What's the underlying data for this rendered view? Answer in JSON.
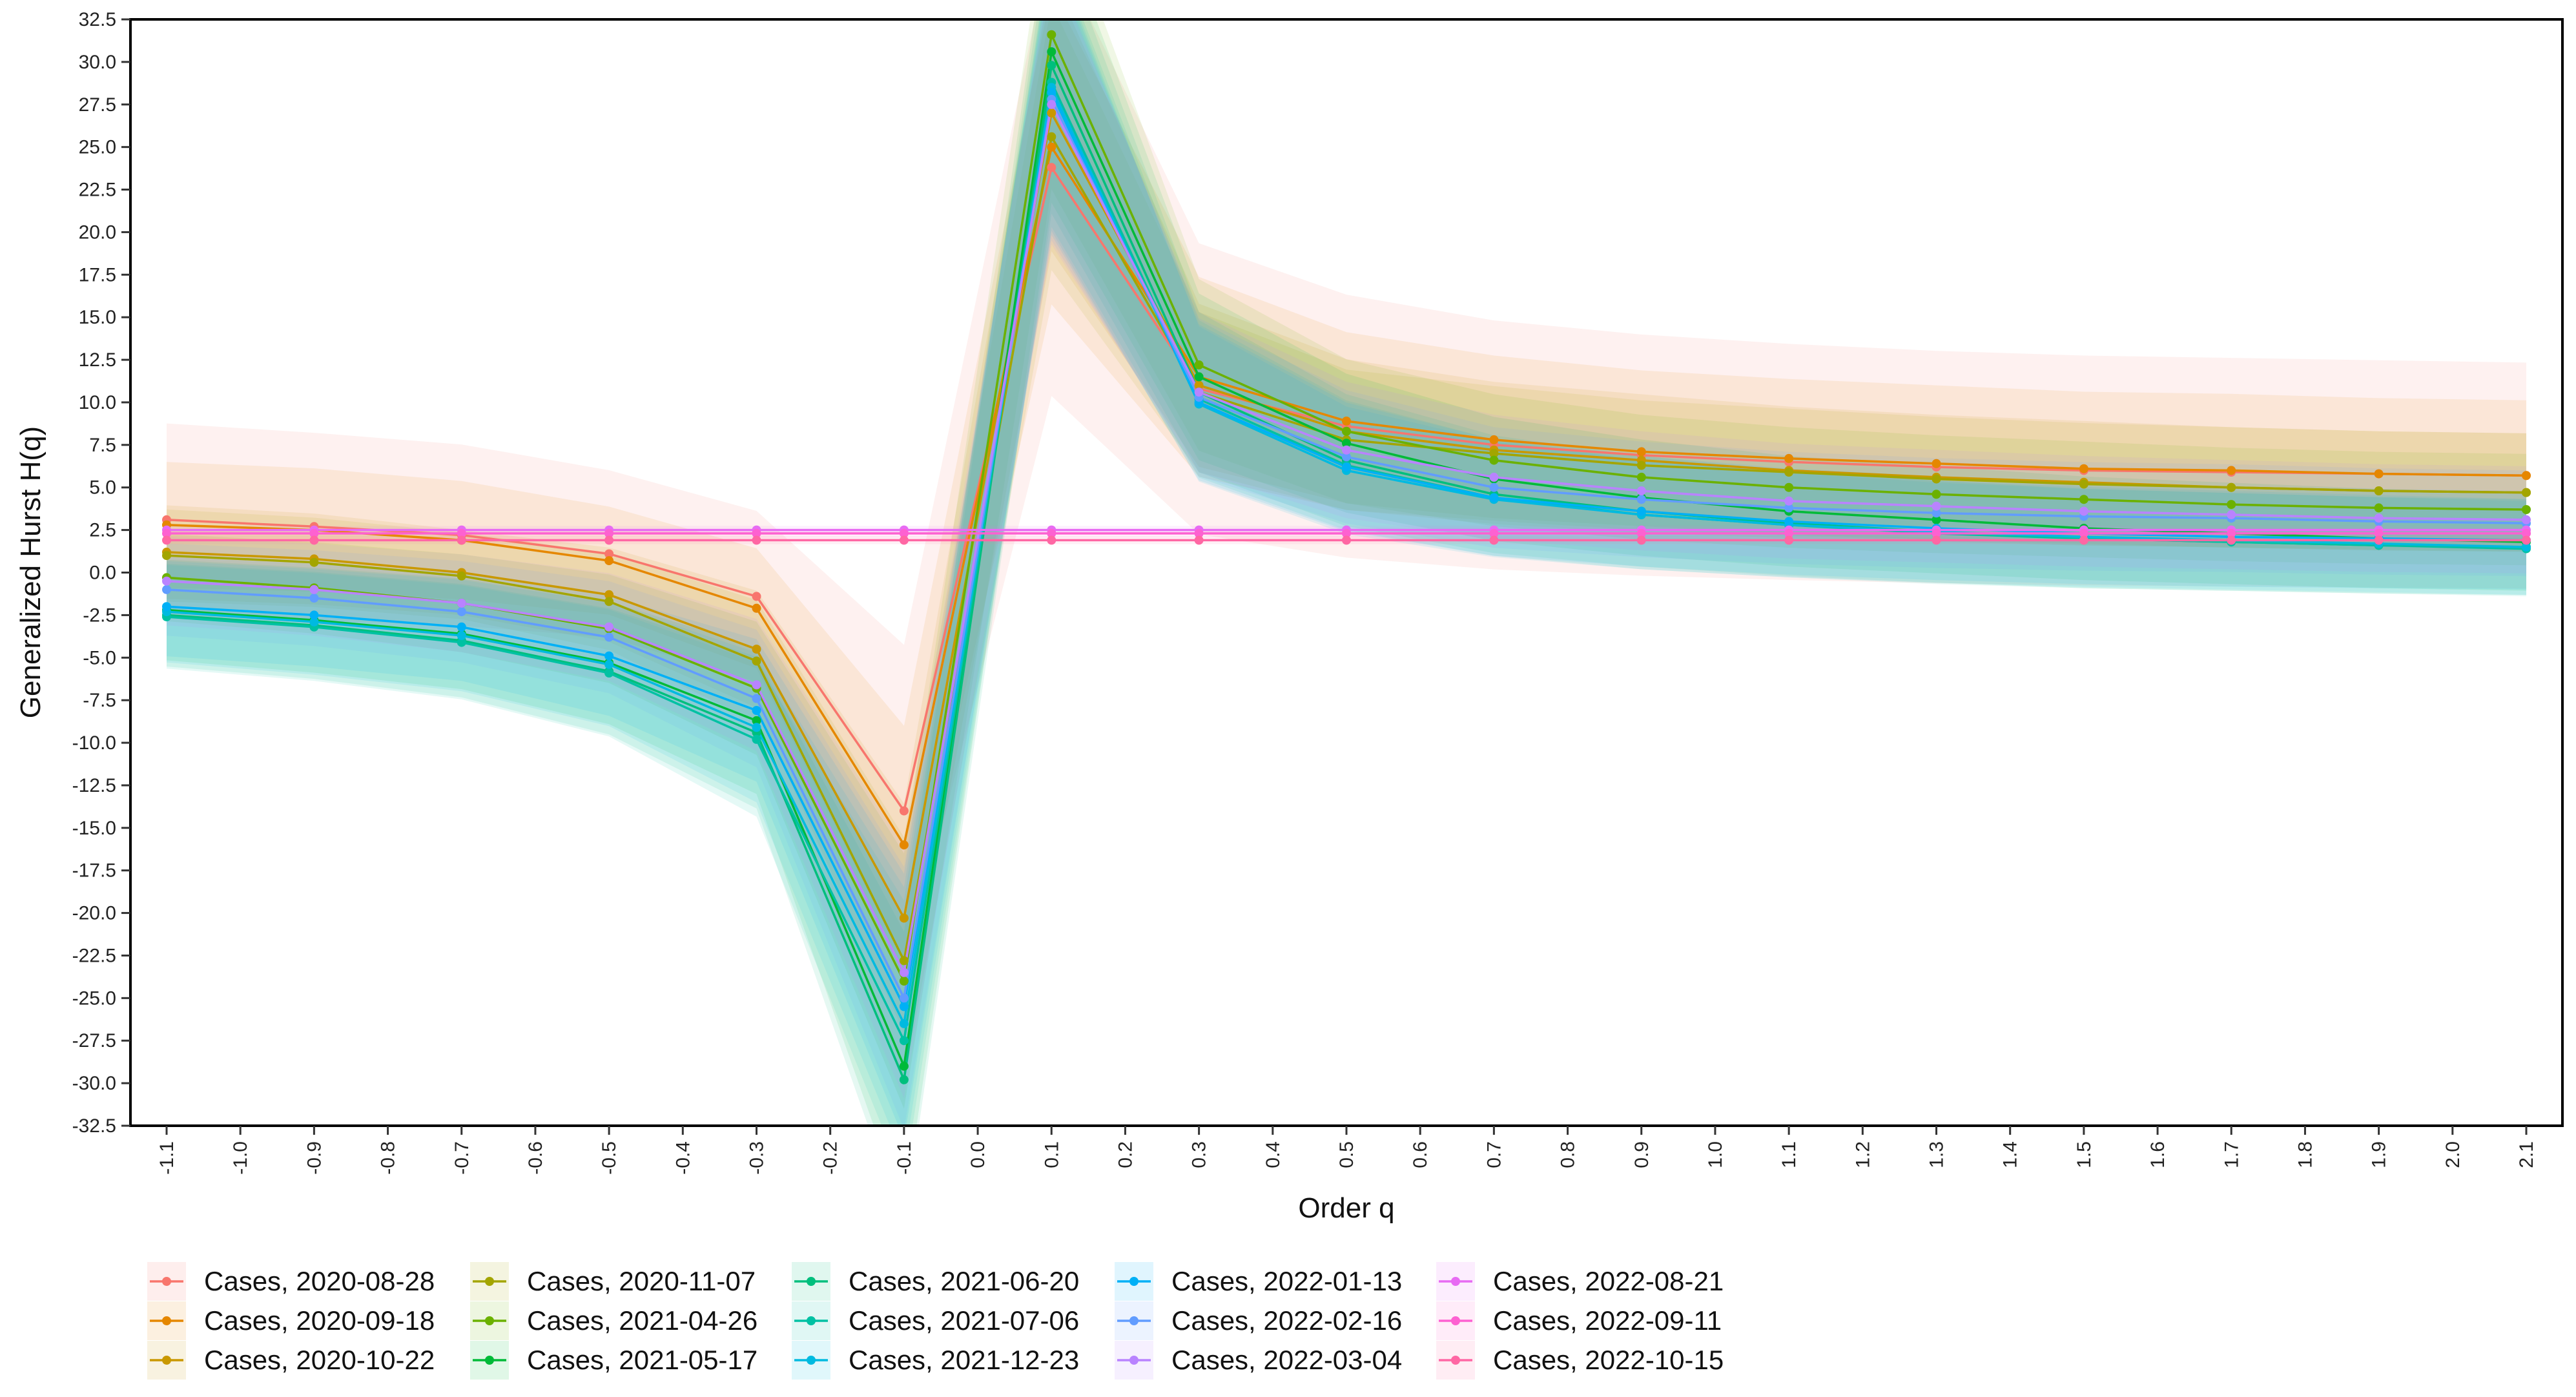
{
  "chart_data": {
    "type": "line",
    "xlabel": "Order q",
    "ylabel": "Generalized Hurst H(q)",
    "ylim": [
      -32.5,
      32.5
    ],
    "xlim": [
      -1.1,
      2.1
    ],
    "grid": false,
    "legend_position": "bottom",
    "x_ticks": [
      "-1.1",
      "-1.0",
      "-0.9",
      "-0.8",
      "-0.7",
      "-0.6",
      "-0.5",
      "-0.4",
      "-0.3",
      "-0.2",
      "-0.1",
      "0.0",
      "0.1",
      "0.2",
      "0.3",
      "0.4",
      "0.5",
      "0.6",
      "0.7",
      "0.8",
      "0.9",
      "1.0",
      "1.1",
      "1.2",
      "1.3",
      "1.4",
      "1.5",
      "1.6",
      "1.7",
      "1.8",
      "1.9",
      "2.0",
      "2.1"
    ],
    "y_ticks": [
      "-32.5",
      "-30.0",
      "-27.5",
      "-25.0",
      "-22.5",
      "-20.0",
      "-17.5",
      "-15.0",
      "-12.5",
      "-10.0",
      "-7.5",
      "-5.0",
      "-2.5",
      "0.0",
      "2.5",
      "5.0",
      "7.5",
      "10.0",
      "12.5",
      "15.0",
      "17.5",
      "20.0",
      "22.5",
      "25.0",
      "27.5",
      "30.0",
      "32.5"
    ],
    "x": [
      -1.1,
      -0.9,
      -0.7,
      -0.5,
      -0.3,
      -0.1,
      0.1,
      0.3,
      0.5,
      0.7,
      0.9,
      1.1,
      1.3,
      1.5,
      1.7,
      1.9,
      2.1
    ],
    "series": [
      {
        "name": "Cases, 2020-08-28",
        "color": "#F8766D",
        "values": [
          3.1,
          2.7,
          2.2,
          1.1,
          -1.4,
          -14.0,
          23.8,
          10.8,
          8.6,
          7.5,
          6.9,
          6.5,
          6.2,
          6.0,
          5.9,
          5.8,
          5.7
        ],
        "band": 4.5
      },
      {
        "name": "Cases, 2020-09-18",
        "color": "#E58700",
        "values": [
          2.8,
          2.5,
          1.9,
          0.7,
          -2.1,
          -16.0,
          25.0,
          11.5,
          8.9,
          7.8,
          7.1,
          6.7,
          6.4,
          6.1,
          6.0,
          5.8,
          5.7
        ],
        "band": 3.0
      },
      {
        "name": "Cases, 2020-10-22",
        "color": "#C99800",
        "values": [
          1.2,
          0.8,
          0.0,
          -1.3,
          -4.5,
          -20.3,
          27.0,
          11.0,
          8.3,
          7.2,
          6.6,
          6.0,
          5.6,
          5.3,
          5.0,
          4.8,
          4.7
        ],
        "band": 2.5
      },
      {
        "name": "Cases, 2020-11-07",
        "color": "#A3A500",
        "values": [
          1.0,
          0.6,
          -0.2,
          -1.7,
          -5.2,
          -22.8,
          25.6,
          10.6,
          7.8,
          7.0,
          6.3,
          5.9,
          5.5,
          5.2,
          5.0,
          4.8,
          4.7
        ],
        "band": 2.5
      },
      {
        "name": "Cases, 2021-04-26",
        "color": "#6BB100",
        "values": [
          -0.3,
          -0.9,
          -1.8,
          -3.3,
          -6.8,
          -24.0,
          31.6,
          12.2,
          8.3,
          6.6,
          5.6,
          5.0,
          4.6,
          4.3,
          4.0,
          3.8,
          3.7
        ],
        "band": 2.5
      },
      {
        "name": "Cases, 2021-05-17",
        "color": "#00BA38",
        "values": [
          -2.2,
          -2.8,
          -3.6,
          -5.3,
          -8.7,
          -29.0,
          30.6,
          11.5,
          7.6,
          5.5,
          4.4,
          3.6,
          3.1,
          2.6,
          2.3,
          2.0,
          1.8
        ],
        "band": 2.5
      },
      {
        "name": "Cases, 2021-06-20",
        "color": "#00BF7D",
        "values": [
          -2.5,
          -3.1,
          -4.0,
          -5.8,
          -9.4,
          -29.8,
          29.8,
          10.6,
          6.6,
          4.6,
          3.6,
          2.9,
          2.4,
          2.0,
          1.8,
          1.6,
          1.5
        ],
        "band": 2.5
      },
      {
        "name": "Cases, 2021-07-06",
        "color": "#00C1A3",
        "values": [
          -2.6,
          -3.2,
          -4.1,
          -5.9,
          -9.8,
          -27.5,
          28.8,
          10.2,
          6.3,
          4.4,
          3.4,
          2.8,
          2.3,
          2.0,
          1.8,
          1.6,
          1.4
        ],
        "band": 2.5
      },
      {
        "name": "Cases, 2021-12-23",
        "color": "#00BAE0",
        "values": [
          -2.3,
          -2.9,
          -3.7,
          -5.4,
          -9.1,
          -26.5,
          28.5,
          9.9,
          6.0,
          4.3,
          3.4,
          2.8,
          2.4,
          2.1,
          1.9,
          1.7,
          1.5
        ],
        "band": 2.5
      },
      {
        "name": "Cases, 2022-01-13",
        "color": "#00B0F6",
        "values": [
          -2.0,
          -2.5,
          -3.2,
          -4.9,
          -8.1,
          -25.5,
          28.2,
          10.0,
          6.2,
          4.4,
          3.6,
          3.0,
          2.6,
          2.3,
          2.1,
          2.0,
          1.9
        ],
        "band": 2.5
      },
      {
        "name": "Cases, 2022-02-16",
        "color": "#619CFF",
        "values": [
          -1.0,
          -1.5,
          -2.3,
          -3.8,
          -7.4,
          -25.0,
          27.8,
          10.3,
          6.8,
          5.0,
          4.3,
          3.8,
          3.5,
          3.3,
          3.2,
          3.0,
          2.9
        ],
        "band": 2.5
      },
      {
        "name": "Cases, 2022-03-04",
        "color": "#B983FF",
        "values": [
          -0.5,
          -1.0,
          -1.8,
          -3.2,
          -6.6,
          -23.5,
          27.5,
          10.6,
          7.2,
          5.6,
          4.8,
          4.2,
          3.9,
          3.6,
          3.4,
          3.2,
          3.1
        ],
        "band": 2.5
      },
      {
        "name": "Cases, 2022-08-21",
        "color": "#E76BF3",
        "values": [
          2.5,
          2.5,
          2.5,
          2.5,
          2.5,
          2.5,
          2.5,
          2.5,
          2.5,
          2.5,
          2.5,
          2.5,
          2.5,
          2.5,
          2.5,
          2.5,
          2.5
        ],
        "band": 0.2
      },
      {
        "name": "Cases, 2022-09-11",
        "color": "#FD61D1",
        "values": [
          2.3,
          2.3,
          2.3,
          2.3,
          2.3,
          2.3,
          2.3,
          2.3,
          2.3,
          2.3,
          2.3,
          2.3,
          2.3,
          2.3,
          2.3,
          2.3,
          2.3
        ],
        "band": 0.2
      },
      {
        "name": "Cases, 2022-10-15",
        "color": "#FF67A4",
        "values": [
          1.9,
          1.9,
          1.9,
          1.9,
          1.9,
          1.9,
          1.9,
          1.9,
          1.9,
          1.9,
          1.9,
          1.9,
          1.9,
          1.9,
          1.9,
          1.9,
          1.9
        ],
        "band": 0.2
      }
    ]
  }
}
